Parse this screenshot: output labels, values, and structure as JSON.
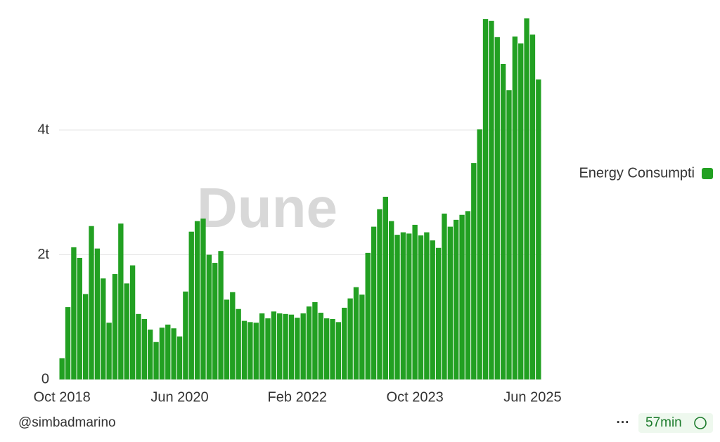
{
  "chart_data": {
    "type": "bar",
    "watermark": "Dune",
    "categories": [
      "Oct 2018",
      null,
      null,
      null,
      null,
      null,
      null,
      null,
      null,
      null,
      null,
      null,
      null,
      null,
      null,
      null,
      null,
      null,
      null,
      null,
      "Jun 2020",
      null,
      null,
      null,
      null,
      null,
      null,
      null,
      null,
      null,
      null,
      null,
      null,
      null,
      null,
      null,
      null,
      null,
      null,
      null,
      "Feb 2022",
      null,
      null,
      null,
      null,
      null,
      null,
      null,
      null,
      null,
      null,
      null,
      null,
      null,
      null,
      null,
      null,
      null,
      null,
      null,
      "Oct 2023",
      null,
      null,
      null,
      null,
      null,
      null,
      null,
      null,
      null,
      null,
      null,
      null,
      null,
      null,
      null,
      null,
      null,
      null,
      null,
      "Jun 2025",
      null
    ],
    "series": [
      {
        "name": "Energy Consumpti",
        "color": "#22a022",
        "values": [
          0.34,
          1.16,
          2.12,
          1.95,
          1.37,
          2.46,
          2.1,
          1.62,
          0.91,
          1.69,
          2.5,
          1.54,
          1.83,
          1.05,
          0.97,
          0.8,
          0.6,
          0.83,
          0.88,
          0.82,
          0.69,
          1.41,
          2.37,
          2.54,
          2.58,
          2.0,
          1.87,
          2.06,
          1.28,
          1.4,
          1.13,
          0.94,
          0.92,
          0.91,
          1.06,
          0.98,
          1.09,
          1.06,
          1.05,
          1.04,
          0.99,
          1.06,
          1.17,
          1.24,
          1.07,
          0.98,
          0.97,
          0.92,
          1.15,
          1.3,
          1.48,
          1.36,
          2.03,
          2.45,
          2.73,
          2.93,
          2.54,
          2.32,
          2.36,
          2.34,
          2.48,
          2.31,
          2.36,
          2.23,
          2.11,
          2.66,
          2.45,
          2.56,
          2.64,
          2.7,
          3.47,
          4.01,
          5.78,
          5.75,
          5.49,
          5.06,
          4.64,
          5.5,
          5.39,
          5.79,
          5.53,
          4.81
        ]
      }
    ],
    "ylim": [
      0,
      5.86
    ],
    "yticks": [
      0,
      {
        "value": 2,
        "label": "2t"
      },
      {
        "value": 4,
        "label": "4t"
      }
    ],
    "grid": true,
    "legend": "right",
    "author": "@simbadmarino",
    "refresh": "57min"
  }
}
